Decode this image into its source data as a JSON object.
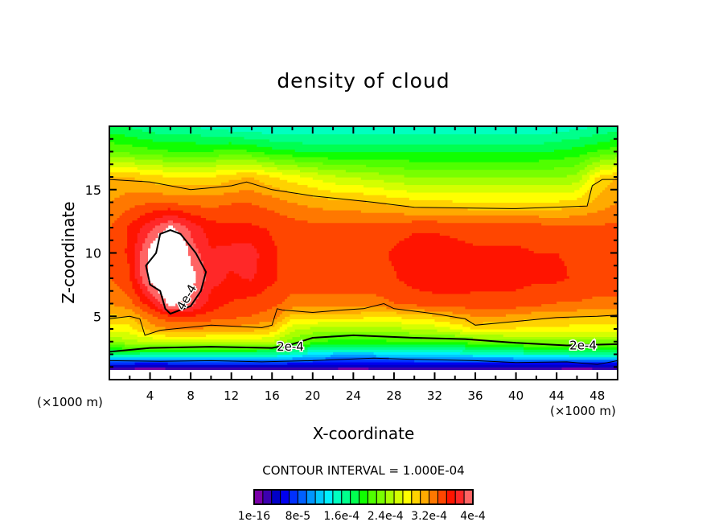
{
  "chart_data": {
    "type": "heatmap",
    "title": "density of cloud",
    "xlabel": "X-coordinate",
    "ylabel": "Z-coordinate",
    "x_unit": "(×1000 m)",
    "xlim": [
      0,
      50
    ],
    "ylim": [
      0,
      20
    ],
    "x_ticks": [
      4,
      8,
      12,
      16,
      20,
      24,
      28,
      32,
      36,
      40,
      44,
      48
    ],
    "y_ticks": [
      5,
      10,
      15
    ],
    "value_scale": 0.0001,
    "contour_interval_label": "CONTOUR INTERVAL = 1.000E-04",
    "colorbar": {
      "min": 0,
      "max": 4,
      "colors": [
        "#7a00a8",
        "#3c00b0",
        "#0000c8",
        "#0000f0",
        "#0030ff",
        "#0060ff",
        "#0096ff",
        "#00c8ff",
        "#00f0ff",
        "#00ffc0",
        "#00ff8c",
        "#00ff50",
        "#10ff00",
        "#50ff00",
        "#78ff00",
        "#a8ff00",
        "#d4ff00",
        "#ffff00",
        "#ffd200",
        "#ffaa00",
        "#ff7800",
        "#ff4600",
        "#ff1400",
        "#ff2828",
        "#ff6464",
        "#ffa0a0"
      ],
      "tick_labels": [
        "1e-16",
        "8e-5",
        "1.6e-4",
        "2.4e-4",
        "3.2e-4",
        "4e-4"
      ]
    },
    "grid": {
      "x": [
        0,
        2,
        4,
        6,
        8,
        10,
        12,
        14,
        16,
        18,
        20,
        22,
        24,
        26,
        28,
        30,
        32,
        34,
        36,
        38,
        40,
        42,
        44,
        46,
        48,
        50
      ],
      "z": [
        0,
        0.8,
        1.2,
        2,
        3,
        4,
        5,
        6,
        8,
        10,
        12,
        14,
        16,
        18,
        20
      ],
      "values": [
        [
          -1,
          -1,
          -1,
          -1,
          -1,
          -1,
          -1,
          -1,
          -1,
          -1,
          -1,
          -1,
          -1,
          -1,
          -1,
          -1,
          -1,
          -1,
          -1,
          -1,
          -1,
          -1,
          -1,
          -1,
          -1,
          -1
        ],
        [
          0.05,
          0.05,
          0.05,
          0.05,
          0.05,
          0.05,
          0.05,
          0.05,
          0.05,
          0.05,
          0.05,
          0.05,
          0.05,
          0.05,
          0.05,
          0.05,
          0.05,
          0.05,
          0.05,
          0.05,
          0.05,
          0.05,
          0.05,
          0.05,
          0.05,
          0.05
        ],
        [
          0.5,
          0.5,
          0.45,
          0.5,
          0.5,
          0.5,
          0.5,
          0.5,
          0.55,
          0.5,
          0.5,
          0.5,
          0.45,
          0.5,
          0.5,
          0.5,
          0.5,
          0.5,
          0.5,
          0.5,
          0.5,
          0.5,
          0.5,
          0.45,
          0.5,
          0.5
        ],
        [
          1.7,
          1.7,
          1.65,
          1.65,
          1.65,
          1.65,
          1.65,
          1.65,
          1.6,
          1.5,
          1.3,
          1.2,
          1.2,
          1.2,
          1.25,
          1.3,
          1.35,
          1.35,
          1.4,
          1.45,
          1.5,
          1.55,
          1.55,
          1.6,
          1.6,
          1.6
        ],
        [
          2.4,
          2.5,
          2.55,
          2.6,
          2.6,
          2.6,
          2.6,
          2.6,
          2.55,
          2.3,
          2.15,
          2.0,
          2.0,
          2.0,
          2.05,
          2.1,
          2.1,
          2.1,
          2.2,
          2.25,
          2.3,
          2.35,
          2.35,
          2.35,
          2.35,
          2.35
        ],
        [
          2.8,
          2.8,
          3.1,
          3.2,
          3.2,
          3.15,
          3.15,
          3.1,
          3.0,
          2.6,
          2.5,
          2.45,
          2.45,
          2.5,
          2.5,
          2.55,
          2.6,
          2.7,
          2.9,
          2.85,
          2.85,
          2.8,
          2.8,
          2.8,
          2.8,
          2.8
        ],
        [
          3.0,
          3.05,
          3.3,
          3.5,
          3.5,
          3.45,
          3.4,
          3.35,
          3.3,
          2.95,
          2.95,
          2.95,
          2.95,
          2.9,
          2.9,
          2.95,
          3.0,
          3.1,
          3.2,
          3.2,
          3.15,
          3.1,
          3.1,
          3.05,
          3.05,
          3.05
        ],
        [
          3.2,
          3.3,
          3.6,
          4.1,
          3.9,
          3.6,
          3.5,
          3.45,
          3.4,
          3.3,
          3.3,
          3.3,
          3.3,
          3.3,
          3.35,
          3.4,
          3.45,
          3.45,
          3.45,
          3.45,
          3.45,
          3.4,
          3.35,
          3.35,
          3.3,
          3.3
        ],
        [
          3.35,
          3.5,
          4.1,
          4.4,
          4.1,
          3.75,
          3.65,
          3.7,
          3.55,
          3.45,
          3.45,
          3.45,
          3.45,
          3.45,
          3.5,
          3.6,
          3.62,
          3.62,
          3.6,
          3.6,
          3.58,
          3.55,
          3.55,
          3.5,
          3.5,
          3.5
        ],
        [
          3.4,
          3.55,
          4.1,
          4.5,
          3.95,
          3.7,
          3.75,
          3.75,
          3.55,
          3.45,
          3.45,
          3.45,
          3.45,
          3.45,
          3.55,
          3.6,
          3.6,
          3.58,
          3.55,
          3.55,
          3.55,
          3.52,
          3.52,
          3.5,
          3.5,
          3.5
        ],
        [
          3.35,
          3.55,
          3.8,
          4.05,
          3.8,
          3.6,
          3.55,
          3.55,
          3.5,
          3.45,
          3.42,
          3.42,
          3.42,
          3.42,
          3.45,
          3.5,
          3.5,
          3.48,
          3.45,
          3.45,
          3.45,
          3.45,
          3.42,
          3.42,
          3.4,
          3.4
        ],
        [
          3.2,
          3.3,
          3.35,
          3.35,
          3.3,
          3.3,
          3.35,
          3.35,
          3.3,
          3.2,
          3.15,
          3.1,
          3.1,
          3.05,
          3.0,
          2.95,
          2.95,
          2.9,
          2.9,
          2.9,
          2.9,
          2.9,
          2.9,
          2.95,
          3.1,
          3.2
        ],
        [
          3.05,
          3.05,
          2.95,
          2.9,
          2.9,
          2.9,
          3.0,
          3.05,
          2.9,
          2.8,
          2.7,
          2.6,
          2.55,
          2.5,
          2.45,
          2.4,
          2.4,
          2.4,
          2.4,
          2.4,
          2.4,
          2.4,
          2.4,
          2.45,
          2.9,
          3.05
        ],
        [
          2.25,
          2.2,
          2.15,
          2.1,
          2.1,
          2.1,
          2.15,
          2.1,
          2.0,
          1.95,
          1.9,
          1.9,
          1.9,
          1.9,
          1.9,
          1.9,
          1.9,
          1.9,
          1.9,
          1.9,
          1.9,
          1.9,
          1.95,
          2.0,
          2.1,
          2.2
        ],
        [
          1.8,
          1.75,
          1.65,
          1.6,
          1.6,
          1.55,
          1.5,
          1.45,
          1.45,
          1.45,
          1.45,
          1.45,
          1.45,
          1.45,
          1.45,
          1.45,
          1.45,
          1.45,
          1.45,
          1.45,
          1.45,
          1.45,
          1.5,
          1.55,
          1.6,
          1.65
        ]
      ]
    },
    "contours": [
      {
        "level": 3,
        "weight": "thin",
        "closed": false,
        "points": [
          [
            0,
            15.8
          ],
          [
            4,
            15.6
          ],
          [
            8,
            15.0
          ],
          [
            12,
            15.3
          ],
          [
            13.5,
            15.6
          ],
          [
            16,
            15.0
          ],
          [
            20,
            14.5
          ],
          [
            26,
            14.0
          ],
          [
            30,
            13.6
          ],
          [
            40,
            13.5
          ],
          [
            47,
            13.7
          ],
          [
            47.5,
            15.3
          ],
          [
            48.5,
            15.8
          ],
          [
            50,
            15.8
          ]
        ]
      },
      {
        "level": 3,
        "weight": "thin",
        "closed": false,
        "points": [
          [
            0,
            4.8
          ],
          [
            2,
            5.0
          ],
          [
            3,
            4.8
          ],
          [
            3.5,
            3.5
          ],
          [
            5,
            3.9
          ],
          [
            10,
            4.3
          ],
          [
            15,
            4.1
          ],
          [
            16,
            4.3
          ],
          [
            16.5,
            5.6
          ],
          [
            17,
            5.5
          ],
          [
            20,
            5.3
          ],
          [
            23,
            5.5
          ],
          [
            25,
            5.6
          ],
          [
            27,
            6.0
          ],
          [
            28,
            5.6
          ],
          [
            32,
            5.2
          ],
          [
            35,
            4.8
          ],
          [
            36,
            4.3
          ],
          [
            40,
            4.6
          ],
          [
            44,
            4.9
          ],
          [
            48,
            5.0
          ],
          [
            50,
            5.1
          ]
        ]
      },
      {
        "level": 2,
        "weight": "bold",
        "closed": false,
        "points": [
          [
            0,
            2.2
          ],
          [
            4,
            2.5
          ],
          [
            10,
            2.6
          ],
          [
            16,
            2.5
          ],
          [
            18,
            2.8
          ],
          [
            20,
            3.3
          ],
          [
            24,
            3.5
          ],
          [
            30,
            3.3
          ],
          [
            35,
            3.2
          ],
          [
            40,
            2.9
          ],
          [
            45,
            2.7
          ],
          [
            50,
            2.8
          ]
        ]
      },
      {
        "level": 1,
        "weight": "thin",
        "closed": false,
        "points": [
          [
            0,
            1.5
          ],
          [
            5,
            1.45
          ],
          [
            10,
            1.5
          ],
          [
            15,
            1.4
          ],
          [
            20,
            1.5
          ],
          [
            26,
            1.7
          ],
          [
            30,
            1.6
          ],
          [
            36,
            1.5
          ],
          [
            40,
            1.35
          ],
          [
            45,
            1.4
          ],
          [
            48,
            1.2
          ],
          [
            50,
            1.5
          ]
        ]
      },
      {
        "level": 4,
        "weight": "bold",
        "closed": true,
        "points": [
          [
            6,
            11.8
          ],
          [
            5,
            11.5
          ],
          [
            4.6,
            10.0
          ],
          [
            3.6,
            9.0
          ],
          [
            4,
            7.5
          ],
          [
            5,
            7.0
          ],
          [
            5.5,
            5.6
          ],
          [
            6,
            5.2
          ],
          [
            8,
            5.8
          ],
          [
            9,
            7.0
          ],
          [
            9.5,
            8.5
          ],
          [
            8.5,
            10.0
          ],
          [
            7,
            11.5
          ]
        ]
      }
    ],
    "contour_labels": [
      {
        "text": "4e-4",
        "x": 7.6,
        "z": 6.5,
        "angle": -60
      },
      {
        "text": "2e-4",
        "x": 17.8,
        "z": 2.6,
        "angle": 0
      },
      {
        "text": "2e-4",
        "x": 46.6,
        "z": 2.7,
        "angle": 0
      }
    ]
  }
}
